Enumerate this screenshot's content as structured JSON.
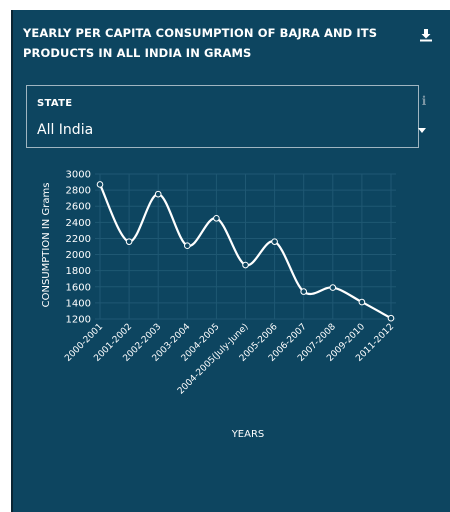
{
  "header": {
    "title_line1": "YEARLY PER CAPITA CONSUMPTION OF BAJRA AND ITS",
    "title_line2": "PRODUCTS IN ALL INDIA IN GRAMS",
    "download_icon": "download-icon"
  },
  "filter": {
    "label": "STATE",
    "value": "All India",
    "info_icon": "info-icon",
    "dropdown_icon": "caret-down-icon"
  },
  "colors": {
    "panel": "#0d4560",
    "line": "#ffffff",
    "grid": "#1f5873",
    "text": "#ffffff"
  },
  "chart_data": {
    "type": "line",
    "title": "",
    "xlabel": "YEARS",
    "ylabel": "CONSUMPTION IN Grams",
    "categories": [
      "2000-2001",
      "2001-2002",
      "2002-2003",
      "2003-2004",
      "2004-2005",
      "2004-2005(July-June)",
      "2005-2006",
      "2006-2007",
      "2007-2008",
      "2009-2010",
      "2011-2012"
    ],
    "series": [
      {
        "values": [
          2870,
          2160,
          2750,
          2110,
          2450,
          1870,
          2160,
          1540,
          1590,
          1410,
          1210
        ]
      }
    ],
    "ylim": [
      1200,
      3000
    ],
    "yticks": [
      1200,
      1400,
      1600,
      1800,
      2000,
      2200,
      2400,
      2600,
      2800,
      3000
    ],
    "grid": true,
    "smooth": true
  }
}
